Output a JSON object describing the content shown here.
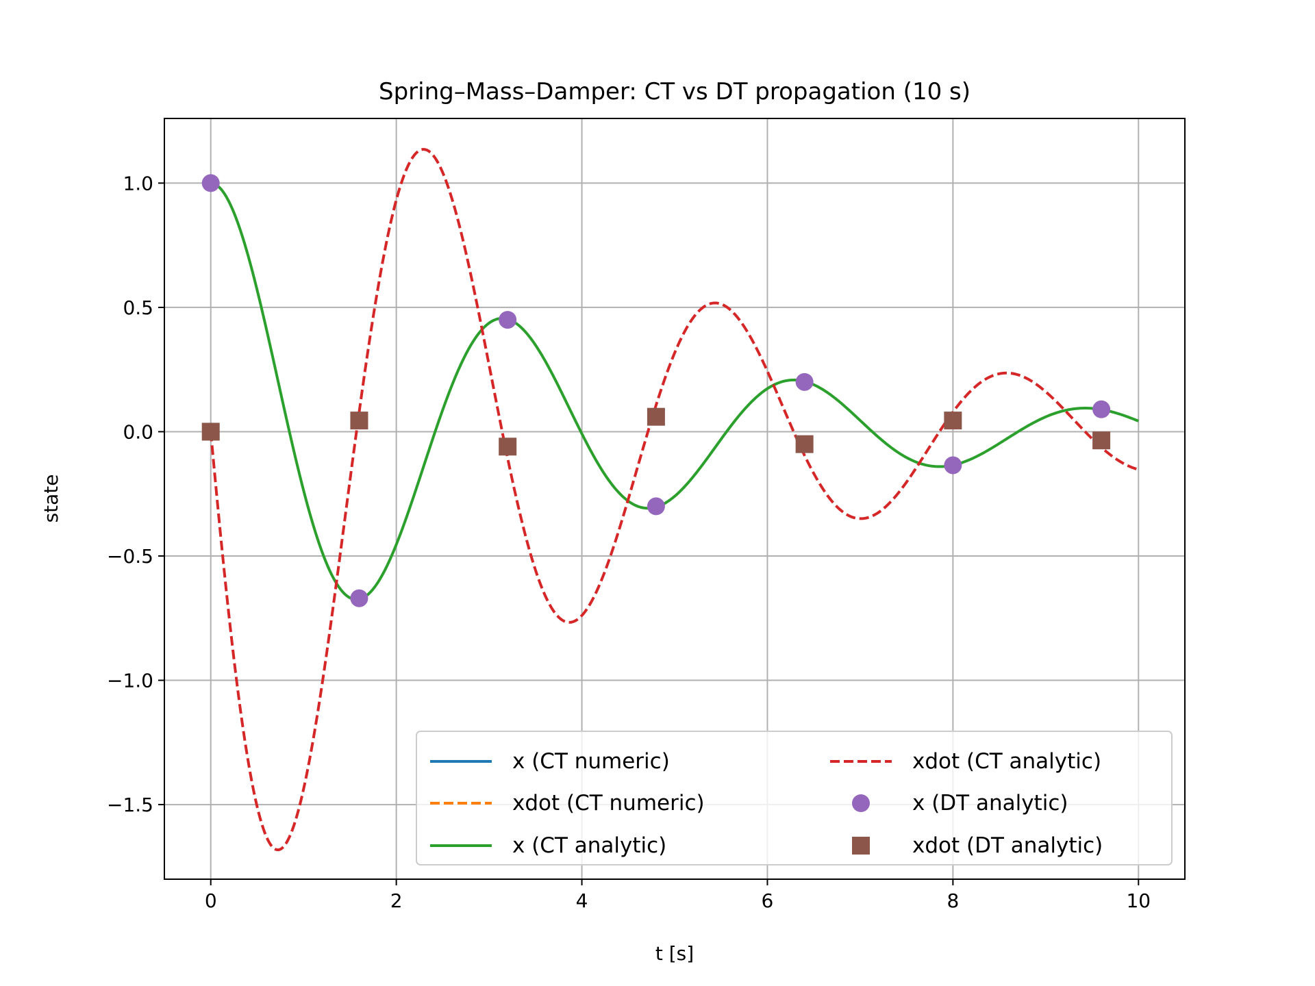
{
  "chart_data": {
    "type": "line",
    "title": "Spring–Mass–Damper: CT vs DT propagation (10 s)",
    "xlabel": "t [s]",
    "ylabel": "state",
    "xlim": [
      -0.5,
      10.5
    ],
    "ylim": [
      -1.8,
      1.26
    ],
    "xticks": [
      0,
      2,
      4,
      6,
      8,
      10
    ],
    "xtick_labels": [
      "0",
      "2",
      "4",
      "6",
      "8",
      "10"
    ],
    "yticks": [
      1.0,
      0.5,
      0.0,
      -0.5,
      -1.0,
      -1.5
    ],
    "ytick_labels": [
      "1.0",
      "0.5",
      "0.0",
      "−0.5",
      "−1.0",
      "−1.5"
    ],
    "grid": true,
    "legend_position": "lower-right",
    "legend_columns": 2,
    "continuous_model": {
      "t_range": [
        0,
        10
      ],
      "x_formula": "exp(-0.25 t) (cos(2 t) + 0.125 sin(2 t))",
      "xdot_formula": "-2.03125 exp(-0.25 t) sin(2 t)"
    },
    "series": [
      {
        "name": "x (CT numeric)",
        "style": "solid",
        "marker": "none",
        "color": "#1f77b4",
        "formula": "x",
        "visible_in_plot": false
      },
      {
        "name": "xdot (CT numeric)",
        "style": "dashed",
        "marker": "none",
        "color": "#ff7f0e",
        "formula": "xdot",
        "visible_in_plot": false
      },
      {
        "name": "x (CT analytic)",
        "style": "solid",
        "marker": "none",
        "color": "#2ca02c",
        "formula": "x",
        "visible_in_plot": true
      },
      {
        "name": "xdot (CT analytic)",
        "style": "dashed",
        "marker": "none",
        "color": "#d62728",
        "formula": "xdot",
        "visible_in_plot": true
      },
      {
        "name": "x (DT analytic)",
        "style": "none",
        "marker": "circle",
        "color": "#9467bd",
        "visible_in_plot": true,
        "x": [
          0,
          1.6,
          3.2,
          4.8,
          6.4,
          8.0,
          9.6
        ],
        "y": [
          1.0,
          -0.67,
          0.45,
          -0.3,
          0.2,
          -0.135,
          0.09
        ]
      },
      {
        "name": "xdot (DT analytic)",
        "style": "none",
        "marker": "square",
        "color": "#8c564b",
        "visible_in_plot": true,
        "x": [
          0,
          1.6,
          3.2,
          4.8,
          6.4,
          8.0,
          9.6
        ],
        "y": [
          0.0,
          0.045,
          -0.06,
          0.06,
          -0.05,
          0.045,
          -0.035
        ]
      }
    ]
  }
}
